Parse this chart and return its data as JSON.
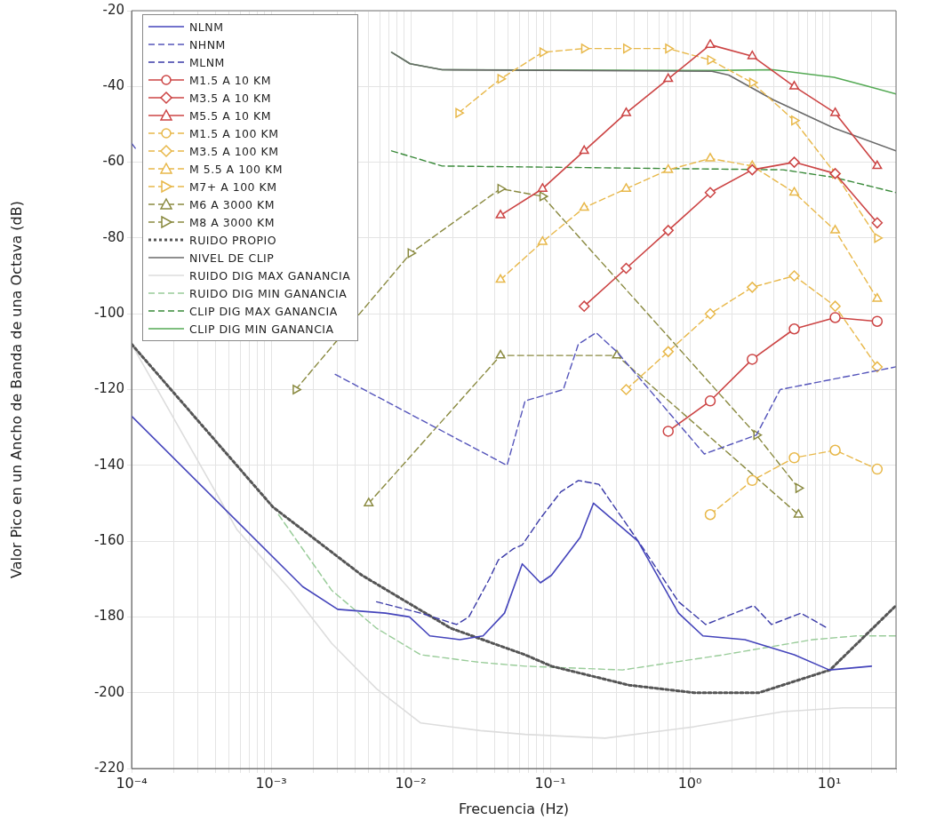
{
  "chart_data": {
    "type": "line",
    "xlabel": "Frecuencia (Hz)",
    "ylabel": "Valor Pico en un Ancho de Banda de una Octava (dB)",
    "log": "x",
    "grid": true,
    "legend": "top left",
    "xlim": [
      0.0001,
      30
    ],
    "ylim": [
      -220,
      -20
    ],
    "xticks": [
      {
        "value": 0.0001,
        "label": "10⁻⁴"
      },
      {
        "value": 0.0002,
        "label": null
      },
      {
        "value": 0.0003,
        "label": null
      },
      {
        "value": 0.0004,
        "label": null
      },
      {
        "value": 0.0005,
        "label": null
      },
      {
        "value": 0.0006,
        "label": null
      },
      {
        "value": 0.0007,
        "label": null
      },
      {
        "value": 0.0008,
        "label": null
      },
      {
        "value": 0.0009,
        "label": null
      },
      {
        "value": 0.001,
        "label": "10⁻³"
      },
      {
        "value": 0.002,
        "label": null
      },
      {
        "value": 0.003,
        "label": null
      },
      {
        "value": 0.004,
        "label": null
      },
      {
        "value": 0.005,
        "label": null
      },
      {
        "value": 0.006,
        "label": null
      },
      {
        "value": 0.007,
        "label": null
      },
      {
        "value": 0.008,
        "label": null
      },
      {
        "value": 0.009,
        "label": null
      },
      {
        "value": 0.01,
        "label": "10⁻²"
      },
      {
        "value": 0.02,
        "label": null
      },
      {
        "value": 0.03,
        "label": null
      },
      {
        "value": 0.04,
        "label": null
      },
      {
        "value": 0.05,
        "label": null
      },
      {
        "value": 0.06,
        "label": null
      },
      {
        "value": 0.07,
        "label": null
      },
      {
        "value": 0.08,
        "label": null
      },
      {
        "value": 0.09,
        "label": null
      },
      {
        "value": 0.1,
        "label": "10⁻¹"
      },
      {
        "value": 0.2,
        "label": null
      },
      {
        "value": 0.3,
        "label": null
      },
      {
        "value": 0.4,
        "label": null
      },
      {
        "value": 0.5,
        "label": null
      },
      {
        "value": 0.6,
        "label": null
      },
      {
        "value": 0.7,
        "label": null
      },
      {
        "value": 0.8,
        "label": null
      },
      {
        "value": 0.9,
        "label": null
      },
      {
        "value": 1,
        "label": "10⁰"
      },
      {
        "value": 2,
        "label": null
      },
      {
        "value": 3,
        "label": null
      },
      {
        "value": 4,
        "label": null
      },
      {
        "value": 5,
        "label": null
      },
      {
        "value": 6,
        "label": null
      },
      {
        "value": 7,
        "label": null
      },
      {
        "value": 8,
        "label": null
      },
      {
        "value": 9,
        "label": null
      },
      {
        "value": 10,
        "label": "10¹"
      },
      {
        "value": 20,
        "label": null
      },
      {
        "value": 30,
        "label": null
      }
    ],
    "yticks": [
      -220,
      -200,
      -180,
      -160,
      -140,
      -120,
      -100,
      -80,
      -60,
      -40,
      -20
    ],
    "series": [
      {
        "name": "NLNM",
        "color": "#4444bb",
        "line_style": "solid",
        "marker": "none",
        "x": [
          0.0001,
          0.00168,
          0.003,
          0.0066,
          0.0098,
          0.0137,
          0.0225,
          0.033,
          0.047,
          0.063,
          0.085,
          0.102,
          0.164,
          0.204,
          0.425,
          0.83,
          1.24,
          2.48,
          5.6,
          10,
          20
        ],
        "values": [
          -127,
          -172,
          -178,
          -179,
          -180,
          -185,
          -186,
          -185,
          -179,
          -166,
          -171,
          -169,
          -159,
          -150,
          -160,
          -179,
          -185,
          -186,
          -190,
          -194,
          -193
        ]
      },
      {
        "name": "NHNM",
        "color": "#5555bb",
        "line_style": "dashed",
        "marker": "none",
        "x": [
          0.0001,
          0.00011,
          0.00141,
          0.00288,
          0.049,
          0.066,
          0.124,
          0.159,
          0.213,
          0.3,
          1.27,
          3,
          4.44,
          30
        ],
        "values": [
          -55,
          -57,
          null,
          -116,
          -140,
          -123,
          -120,
          -108,
          -105,
          -110,
          -137,
          -132,
          -120,
          -114
        ]
      },
      {
        "name": "MLNM",
        "color": "#3a3aa8",
        "line_style": "dashed",
        "marker": "none",
        "x": [
          0.0057,
          0.0118,
          0.0213,
          0.0261,
          0.0366,
          0.0424,
          0.0545,
          0.063,
          0.085,
          0.119,
          0.159,
          0.223,
          0.465,
          0.83,
          1.3,
          2.87,
          3.85,
          6.25,
          9.7
        ],
        "values": [
          -176,
          -179,
          -182,
          -180,
          -170,
          -165,
          -162,
          -161,
          -154,
          -147,
          -144,
          -145,
          -162,
          -176,
          -182,
          -177,
          -182,
          -179,
          -183
        ]
      },
      {
        "name": "M1.5 A 10 KM",
        "color": "#cc4444",
        "line_style": "solid",
        "marker": "circle",
        "x": [
          0.7,
          1.4,
          2.8,
          5.6,
          11,
          22
        ],
        "values": [
          -131,
          -123,
          -112,
          -104,
          -101,
          -102
        ]
      },
      {
        "name": "M3.5 A 10 KM",
        "color": "#cc4444",
        "line_style": "solid",
        "marker": "diamond",
        "x": [
          0.175,
          0.35,
          0.7,
          1.4,
          2.8,
          5.6,
          11,
          22
        ],
        "values": [
          -98,
          -88,
          -78,
          -68,
          -62,
          -60,
          -63,
          -76
        ]
      },
      {
        "name": "M5.5 A 10 KM",
        "color": "#cc4444",
        "line_style": "solid",
        "marker": "triangle",
        "x": [
          0.044,
          0.088,
          0.175,
          0.35,
          0.7,
          1.4,
          2.8,
          5.6,
          11,
          22
        ],
        "values": [
          -74,
          -67,
          -57,
          -47,
          -38,
          -29,
          -32,
          -40,
          -47,
          -61
        ]
      },
      {
        "name": "M1.5 A 100 KM",
        "color": "#e8b84a",
        "line_style": "dashed",
        "marker": "circle",
        "x": [
          1.4,
          2.8,
          5.6,
          11,
          22
        ],
        "values": [
          -153,
          -144,
          -138,
          -136,
          -141
        ]
      },
      {
        "name": "M3.5 A 100 KM",
        "color": "#e8b84a",
        "line_style": "dashed",
        "marker": "diamond",
        "x": [
          0.35,
          0.7,
          1.4,
          2.8,
          5.6,
          11,
          22
        ],
        "values": [
          -120,
          -110,
          -100,
          -93,
          -90,
          -98,
          -114
        ]
      },
      {
        "name": "M 5.5 A 100 KM",
        "color": "#e8b84a",
        "line_style": "dashed",
        "marker": "triangle",
        "x": [
          0.044,
          0.088,
          0.175,
          0.35,
          0.7,
          1.4,
          2.8,
          5.6,
          11,
          22
        ],
        "values": [
          -91,
          -81,
          -72,
          -67,
          -62,
          -59,
          -61,
          -68,
          -78,
          -96
        ]
      },
      {
        "name": "M7+ A 100 KM",
        "color": "#e8b84a",
        "line_style": "dashed",
        "marker": "triangle-right",
        "x": [
          0.022,
          0.044,
          0.088,
          0.175,
          0.35,
          0.7,
          1.4,
          2.8,
          5.6,
          11,
          22
        ],
        "values": [
          -47,
          -38,
          -31,
          -30,
          -30,
          -30,
          -33,
          -39,
          -49,
          -63,
          -80
        ]
      },
      {
        "name": "M6 A 3000 KM",
        "color": "#8a8a40",
        "line_style": "dashed",
        "marker": "triangle",
        "x": [
          0.005,
          0.044,
          0.3,
          6
        ],
        "values": [
          -150,
          -111,
          -111,
          -153
        ]
      },
      {
        "name": "M8 A 3000 KM",
        "color": "#8a8a40",
        "line_style": "dashed",
        "marker": "triangle-right",
        "x": [
          0.0015,
          0.01,
          0.044,
          0.088,
          3,
          6
        ],
        "values": [
          -120,
          -84,
          -67,
          -69,
          -132,
          -146
        ]
      },
      {
        "name": "RUIDO PROPIO",
        "color": "#555555",
        "line_style": "dotted",
        "marker": "none",
        "x": [
          0.0001,
          0.00103,
          0.00447,
          0.0194,
          0.066,
          0.102,
          0.366,
          1.07,
          3.13,
          10.1,
          30
        ],
        "values": [
          -108,
          -151,
          -169,
          -183,
          -190,
          -193,
          -198,
          -200,
          -200,
          -194,
          -177
        ]
      },
      {
        "name": "NIVEL DE CLIP",
        "color": "#6a6a6a",
        "line_style": "solid",
        "marker": "none",
        "x": [
          0.0073,
          0.0099,
          0.0168,
          1.44,
          1.9,
          3.95,
          10.8,
          30
        ],
        "values": [
          -31,
          -34,
          -35.6,
          -36,
          -37,
          -43.5,
          -51,
          -57
        ]
      },
      {
        "name": "RUIDO DIG MAX GANANCIA",
        "color": "#dddddd",
        "line_style": "solid",
        "marker": "none",
        "x": [
          0.0001,
          0.00057,
          0.00138,
          0.00272,
          0.0057,
          0.0118,
          0.0316,
          0.066,
          0.247,
          1.07,
          4.66,
          12.4,
          30
        ],
        "values": [
          -108,
          -157,
          -173,
          -187,
          -199,
          -208,
          -210,
          -211,
          -212,
          -209,
          -205,
          -204,
          -204
        ]
      },
      {
        "name": "RUIDO DIG MIN GANANCIA",
        "color": "#99cc99",
        "line_style": "dashed",
        "marker": "none",
        "x": [
          0.00113,
          0.00272,
          0.0057,
          0.0118,
          0.0316,
          0.066,
          0.329,
          1.74,
          7.57,
          15.8,
          30
        ],
        "values": [
          -153,
          -173,
          -183,
          -190,
          -192,
          -193,
          -194,
          -190,
          -186,
          -185,
          -185
        ]
      },
      {
        "name": "CLIP DIG MAX GANANCIA",
        "color": "#3a8a3a",
        "line_style": "dashed",
        "marker": "none",
        "x": [
          0.0073,
          0.0168,
          4.66,
          10.8,
          30
        ],
        "values": [
          -57,
          -61,
          -62,
          -64,
          -68
        ]
      },
      {
        "name": "CLIP DIG MIN GANANCIA",
        "color": "#55aa55",
        "line_style": "solid",
        "marker": "none",
        "x": [
          0.0073,
          0.0099,
          0.0168,
          1.44,
          3.95,
          10.8,
          19,
          30
        ],
        "values": [
          -31,
          -34,
          -35.6,
          -35.8,
          -35.6,
          -37.6,
          -40,
          -42
        ]
      }
    ]
  }
}
